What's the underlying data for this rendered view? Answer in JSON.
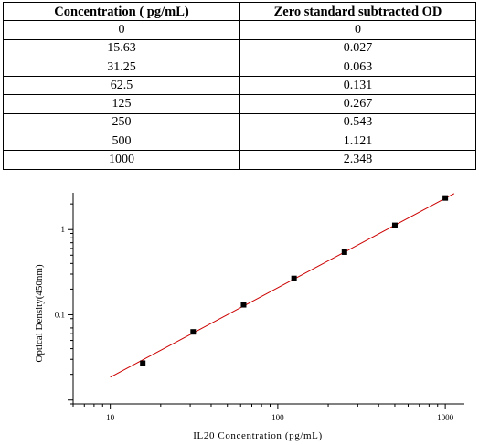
{
  "table": {
    "headers": [
      "Concentration ( pg/mL)",
      "Zero standard subtracted OD"
    ],
    "rows": [
      [
        "0",
        "0"
      ],
      [
        "15.63",
        "0.027"
      ],
      [
        "31.25",
        "0.063"
      ],
      [
        "62.5",
        "0.131"
      ],
      [
        "125",
        "0.267"
      ],
      [
        "250",
        "0.543"
      ],
      [
        "500",
        "1.121"
      ],
      [
        "1000",
        "2.348"
      ]
    ]
  },
  "chart_data": {
    "type": "scatter",
    "xlabel": "IL20 Concentration (pg/mL)",
    "ylabel": "Optical Density(450nm)",
    "xscale": "log",
    "yscale": "log",
    "xlim": [
      6,
      1300
    ],
    "ylim": [
      0.009,
      2.7
    ],
    "xticks": [
      10,
      100,
      1000
    ],
    "yticks": [
      0.1,
      1
    ],
    "xtick_labels": [
      "10",
      "100",
      "1000"
    ],
    "ytick_labels": [
      "0.1",
      "1"
    ],
    "grid": false,
    "series": [
      {
        "x": [
          15.63,
          31.25,
          62.5,
          125,
          250,
          500,
          1000
        ],
        "y": [
          0.027,
          0.063,
          0.131,
          0.267,
          0.543,
          1.121,
          2.348
        ],
        "color": "#000000",
        "marker": "square"
      }
    ],
    "fit_line": {
      "x": [
        10,
        1130
      ],
      "y": [
        0.0185,
        2.65
      ],
      "color": "#cc0000"
    }
  }
}
